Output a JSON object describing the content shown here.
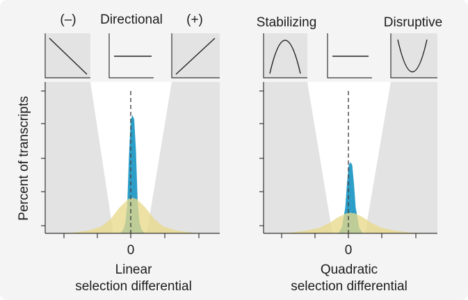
{
  "figure": {
    "ylabel": "Percent of transcripts"
  },
  "chart_data": [
    {
      "type": "area",
      "panel": "left",
      "header": {
        "center": "Directional",
        "left": "(–)",
        "right": "(+)"
      },
      "xlabel": [
        "Linear",
        "selection differential"
      ],
      "ylabel": "Percent of transcripts",
      "x_ticks": [
        "",
        "",
        "0",
        "",
        ""
      ],
      "xlim": [
        -1,
        1
      ],
      "ylim": [
        0,
        1
      ],
      "dashed_line_at_x": 0,
      "insets": [
        {
          "label": "negative directional",
          "shape": "decreasing line"
        },
        {
          "label": "neutral",
          "shape": "flat line"
        },
        {
          "label": "positive directional",
          "shape": "increasing line"
        }
      ],
      "series": [
        {
          "color": "#2c9ec8",
          "x": [
            -1,
            -0.14,
            -0.1,
            -0.08,
            -0.06,
            -0.04,
            -0.02,
            0,
            0.02,
            0.04,
            0.06,
            0.08,
            0.1,
            0.14,
            1
          ],
          "y": [
            0,
            0,
            0.03,
            0.08,
            0.2,
            0.55,
            0.8,
            0.83,
            0.8,
            0.58,
            0.22,
            0.08,
            0.03,
            0,
            0
          ]
        },
        {
          "color": "#e8d98a",
          "x": [
            -1,
            -0.7,
            -0.5,
            -0.35,
            -0.25,
            -0.15,
            -0.05,
            0,
            0.05,
            0.15,
            0.25,
            0.35,
            0.5,
            0.7,
            1
          ],
          "y": [
            0,
            0.005,
            0.02,
            0.05,
            0.1,
            0.18,
            0.24,
            0.25,
            0.24,
            0.18,
            0.1,
            0.05,
            0.02,
            0.005,
            0
          ]
        }
      ]
    },
    {
      "type": "area",
      "panel": "right",
      "header": {
        "left": "Stabilizing",
        "right": "Disruptive"
      },
      "xlabel": [
        "Quadratic",
        "selection differential"
      ],
      "x_ticks": [
        "",
        "",
        "0",
        "",
        ""
      ],
      "xlim": [
        -1,
        1
      ],
      "ylim": [
        0,
        1
      ],
      "dashed_line_at_x": 0,
      "insets": [
        {
          "label": "stabilizing",
          "shape": "concave curve"
        },
        {
          "label": "neutral",
          "shape": "flat line"
        },
        {
          "label": "disruptive",
          "shape": "convex curve"
        }
      ],
      "series": [
        {
          "color": "#2c9ec8",
          "x": [
            -1,
            -0.14,
            -0.1,
            -0.06,
            -0.04,
            -0.02,
            0,
            0.02,
            0.04,
            0.06,
            0.1,
            0.14,
            1
          ],
          "y": [
            0,
            0,
            0.04,
            0.18,
            0.35,
            0.48,
            0.5,
            0.48,
            0.35,
            0.18,
            0.04,
            0,
            0
          ]
        },
        {
          "color": "#e8d98a",
          "x": [
            -1,
            -0.7,
            -0.5,
            -0.35,
            -0.25,
            -0.15,
            -0.05,
            0,
            0.05,
            0.15,
            0.25,
            0.35,
            0.5,
            0.7,
            1
          ],
          "y": [
            0,
            0.005,
            0.02,
            0.04,
            0.07,
            0.11,
            0.14,
            0.145,
            0.14,
            0.11,
            0.07,
            0.04,
            0.02,
            0.005,
            0
          ]
        }
      ]
    }
  ]
}
